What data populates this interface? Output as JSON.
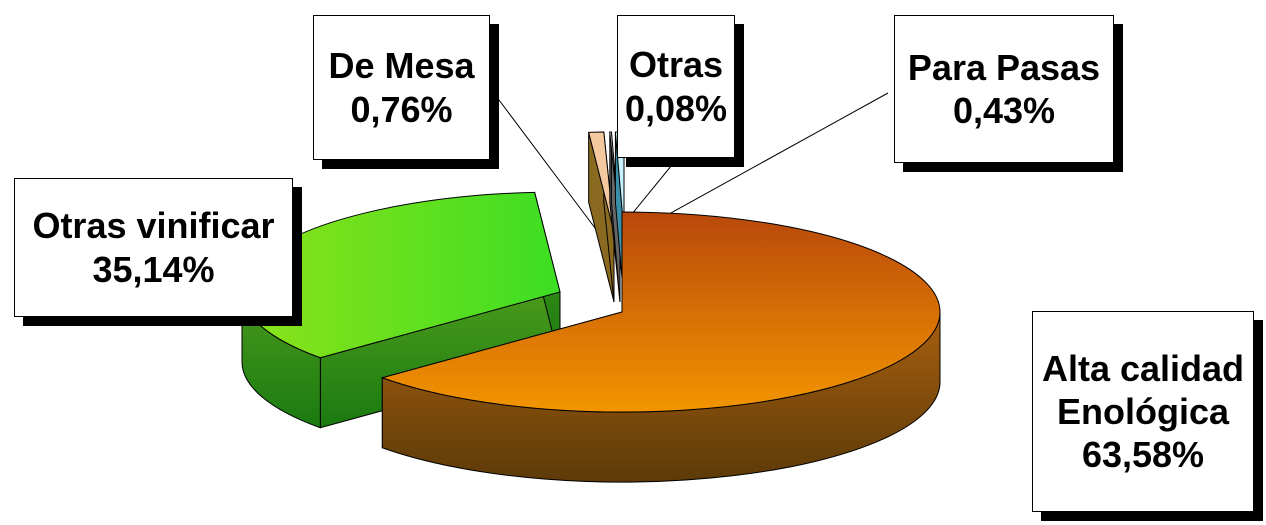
{
  "chart_data": {
    "type": "pie",
    "title": "",
    "style": "3d-exploded",
    "legend": "none",
    "slices": [
      {
        "label": "Alta calidad Enológica",
        "value": 63.58,
        "display": "63,58%",
        "top_color": "#f39500",
        "top_dark": "#b8480a",
        "side_color": "#7a4a08"
      },
      {
        "label": "Otras vinificar",
        "value": 35.14,
        "display": "35,14%",
        "top_color": "#8de21a",
        "top_dark": "#3dde23",
        "side_color": "#2e8c16"
      },
      {
        "label": "De Mesa",
        "value": 0.76,
        "display": "0,76%",
        "top_color": "#f5c9a0",
        "top_dark": "#f0b27a",
        "side_color": "#8a6a20"
      },
      {
        "label": "Otras",
        "value": 0.08,
        "display": "0,08%",
        "top_color": "#ffffff",
        "top_dark": "#e0e0e0",
        "side_color": "#666666"
      },
      {
        "label": "Para Pasas",
        "value": 0.43,
        "display": "0,43%",
        "top_color": "#c8f2ff",
        "top_dark": "#a0e4f8",
        "side_color": "#3a8fa8"
      }
    ]
  },
  "labels": {
    "alta": {
      "line1": "Alta calidad",
      "line2": "Enológica",
      "pct": "63,58%"
    },
    "vinificar": {
      "line1": "Otras vinificar",
      "pct": "35,14%"
    },
    "mesa": {
      "line1": "De Mesa",
      "pct": "0,76%"
    },
    "otras": {
      "line1": "Otras",
      "pct": "0,08%"
    },
    "pasas": {
      "line1": "Para Pasas",
      "pct": "0,43%"
    }
  }
}
